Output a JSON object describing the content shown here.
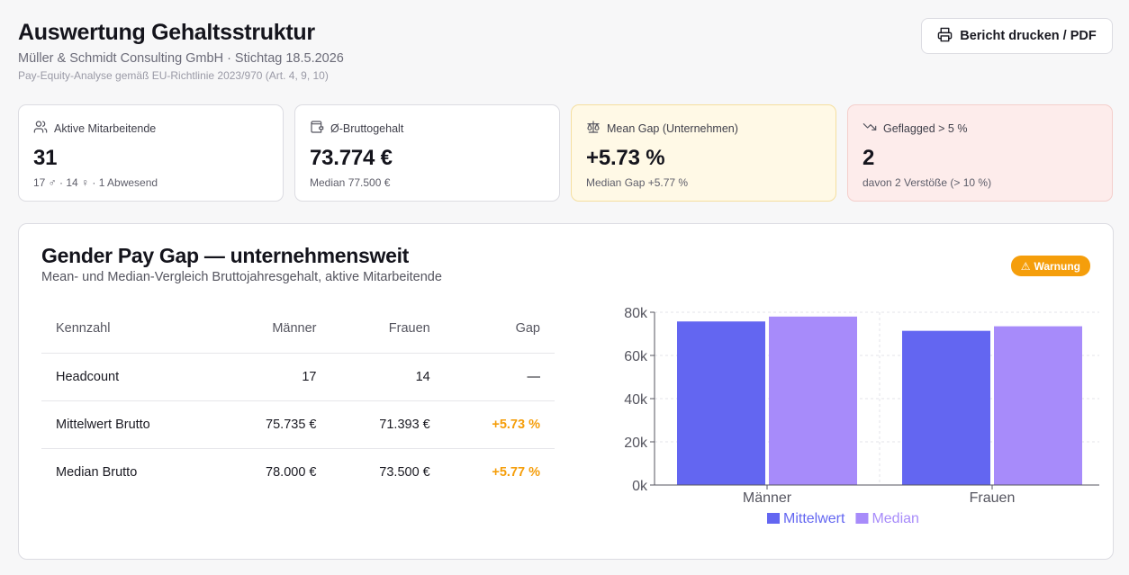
{
  "header": {
    "title": "Auswertung Gehaltsstruktur",
    "subtitle": "Müller & Schmidt Consulting GmbH · Stichtag 18.5.2026",
    "legal": "Pay-Equity-Analyse gemäß EU-Richtlinie 2023/970 (Art. 4, 9, 10)",
    "print_label": "Bericht drucken / PDF"
  },
  "kpis": [
    {
      "label": "Aktive Mitarbeitende",
      "value": "31",
      "sub": "17 ♂ · 14 ♀ · 1 Abwesend",
      "icon": "users-icon"
    },
    {
      "label": "Ø-Bruttogehalt",
      "value": "73.774 €",
      "sub": "Median 77.500 €",
      "icon": "wallet-icon"
    },
    {
      "label": "Mean Gap (Unternehmen)",
      "value": "+5.73 %",
      "sub": "Median Gap +5.77 %",
      "icon": "scale-icon"
    },
    {
      "label": "Geflagged > 5 %",
      "value": "2",
      "sub": "davon 2 Verstöße (> 10 %)",
      "icon": "trending-down-icon"
    }
  ],
  "panel": {
    "title": "Gender Pay Gap — unternehmensweit",
    "subtitle": "Mean- und Median-Vergleich Bruttojahresgehalt, aktive Mitarbeitende",
    "badge": "Warnung",
    "table": {
      "headers": [
        "Kennzahl",
        "Männer",
        "Frauen",
        "Gap"
      ],
      "rows": [
        [
          "Headcount",
          "17",
          "14",
          "—"
        ],
        [
          "Mittelwert Brutto",
          "75.735 €",
          "71.393 €",
          "+5.73 %"
        ],
        [
          "Median Brutto",
          "78.000 €",
          "73.500 €",
          "+5.77 %"
        ]
      ]
    }
  },
  "colors": {
    "accent": "#f59e0b",
    "mean": "#6366f1",
    "median": "#a78bfa"
  },
  "chart_data": {
    "type": "bar",
    "categories": [
      "Männer",
      "Frauen"
    ],
    "series": [
      {
        "name": "Mittelwert",
        "values": [
          75735,
          71393
        ],
        "color": "#6366f1"
      },
      {
        "name": "Median",
        "values": [
          78000,
          73500
        ],
        "color": "#a78bfa"
      }
    ],
    "yticks": [
      "0k",
      "20k",
      "40k",
      "60k",
      "80k"
    ],
    "ylim": [
      0,
      80000
    ],
    "grid": true,
    "legend": "bottom"
  }
}
